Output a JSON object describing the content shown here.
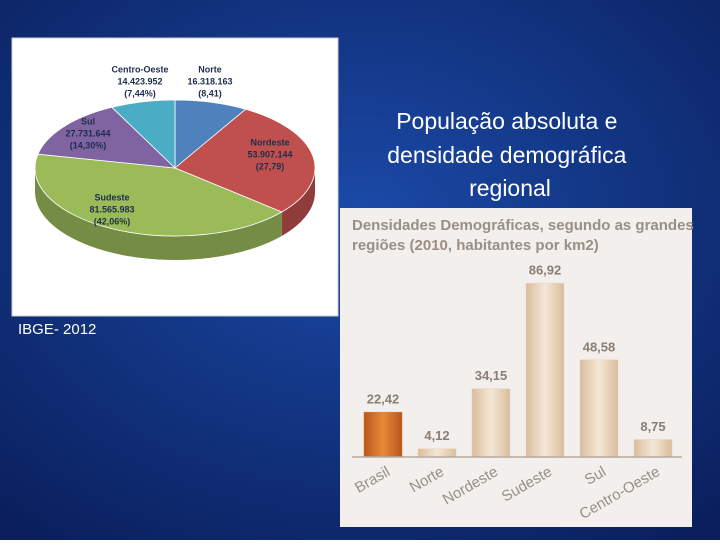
{
  "slide_title": "População absoluta e densidade demográfica regional",
  "source": "IBGE- 2012",
  "chart_data": [
    {
      "type": "pie",
      "categories": [
        "Norte",
        "Nordeste",
        "Sudeste",
        "Sul",
        "Centro-Oeste"
      ],
      "values": [
        8.41,
        27.79,
        42.06,
        14.3,
        7.44
      ],
      "value_labels": [
        "(8,41)",
        "(27,79)",
        "(42,06%)",
        "(14,30%)",
        "(7,44%)"
      ],
      "populations": [
        16318163,
        53907144,
        81565983,
        27731644,
        14423952
      ],
      "population_labels": [
        "16.318.163",
        "53.907.144",
        "81.565.983",
        "27.731.644",
        "14.423.952"
      ],
      "colors": [
        "#4f81bd",
        "#c0504d",
        "#9bbb59",
        "#8064a2",
        "#4bacc6"
      ]
    },
    {
      "type": "bar",
      "title": "Densidades Demográficas, segundo as grandes regiões (2010, habitantes por km2)",
      "categories": [
        "Brasil",
        "Norte",
        "Nordeste",
        "Sudeste",
        "Sul",
        "Centro-Oeste"
      ],
      "values": [
        22.42,
        4.12,
        34.15,
        86.92,
        48.58,
        8.75
      ],
      "value_labels": [
        "22,42",
        "4,12",
        "34,15",
        "86,92",
        "48,58",
        "8,75"
      ],
      "colors": [
        "#d9772a",
        "#e8d4bd",
        "#e8d4bd",
        "#e8d4bd",
        "#e8d4bd",
        "#e8d4bd"
      ],
      "ylim": [
        0,
        100
      ]
    }
  ]
}
